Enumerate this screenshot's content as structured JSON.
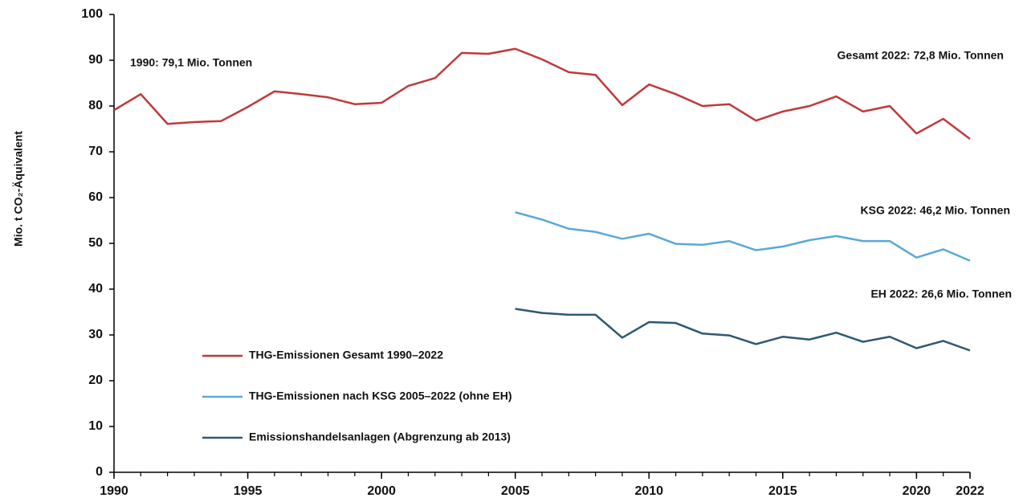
{
  "chart_data": {
    "type": "line",
    "y_label": "Mio. t CO₂-Äquivalent",
    "x": [
      1990,
      1991,
      1992,
      1993,
      1994,
      1995,
      1996,
      1997,
      1998,
      1999,
      2000,
      2001,
      2002,
      2003,
      2004,
      2005,
      2006,
      2007,
      2008,
      2009,
      2010,
      2011,
      2012,
      2013,
      2014,
      2015,
      2016,
      2017,
      2018,
      2019,
      2020,
      2021,
      2022
    ],
    "series": [
      {
        "name": "THG-Emissionen Gesamt 1990–2022",
        "color": "#c0393b",
        "values": [
          79.1,
          82.6,
          76.1,
          76.5,
          76.7,
          79.8,
          83.2,
          82.6,
          81.9,
          80.4,
          80.7,
          84.4,
          86.1,
          91.6,
          91.4,
          92.5,
          90.2,
          87.4,
          86.8,
          80.2,
          84.7,
          82.6,
          80.0,
          80.4,
          76.8,
          78.8,
          80.0,
          82.1,
          78.8,
          80.0,
          74.0,
          77.2,
          72.8
        ]
      },
      {
        "name": "THG-Emissionen nach KSG 2005–2022 (ohne EH)",
        "color": "#5aa9d6",
        "values": [
          null,
          null,
          null,
          null,
          null,
          null,
          null,
          null,
          null,
          null,
          null,
          null,
          null,
          null,
          null,
          56.8,
          55.2,
          53.2,
          52.5,
          51.0,
          52.1,
          49.9,
          49.7,
          50.5,
          48.5,
          49.3,
          50.7,
          51.6,
          50.5,
          50.5,
          46.9,
          48.7,
          46.2
        ]
      },
      {
        "name": "Emissionshandelsanlagen (Abgrenzung ab 2013)",
        "color": "#2e5870",
        "values": [
          null,
          null,
          null,
          null,
          null,
          null,
          null,
          null,
          null,
          null,
          null,
          null,
          null,
          null,
          null,
          35.7,
          34.8,
          34.4,
          34.4,
          29.4,
          32.8,
          32.6,
          30.3,
          29.9,
          28.0,
          29.6,
          29.0,
          30.5,
          28.5,
          29.6,
          27.1,
          28.7,
          26.6
        ]
      }
    ],
    "annotations": [
      "1990: 79,1 Mio. Tonnen",
      "Gesamt 2022: 72,8 Mio. Tonnen",
      "KSG 2022: 46,2 Mio. Tonnen",
      "EH 2022:  26,6 Mio. Tonnen"
    ],
    "xlim": [
      1990,
      2022
    ],
    "xticks": [
      1990,
      1995,
      2000,
      2005,
      2010,
      2015,
      2020,
      2022
    ],
    "ylim": [
      0,
      100
    ],
    "yticks": [
      0,
      10,
      20,
      30,
      40,
      50,
      60,
      70,
      80,
      90,
      100
    ],
    "grid": false,
    "legend": "lower left"
  }
}
